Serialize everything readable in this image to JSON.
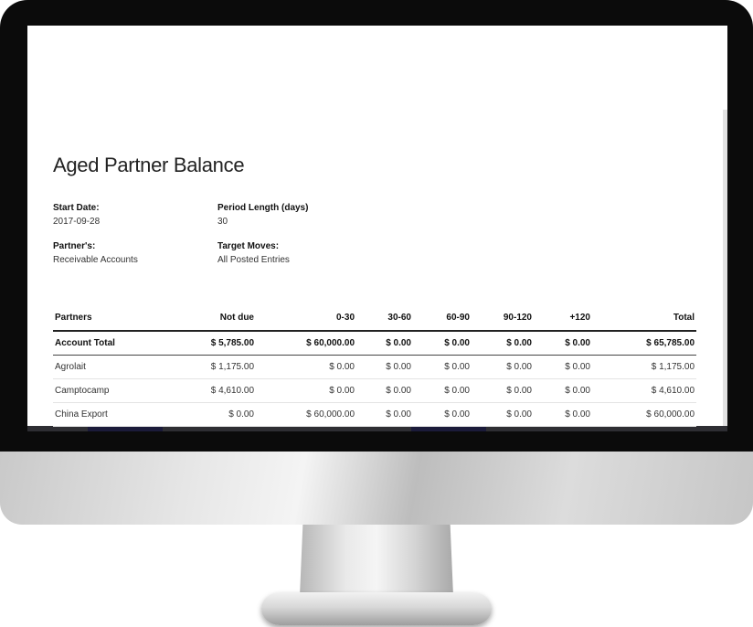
{
  "report": {
    "title": "Aged Partner Balance",
    "start_date": {
      "label": "Start Date:",
      "value": "2017-09-28"
    },
    "period_length": {
      "label": "Period Length (days)",
      "value": "30"
    },
    "partners": {
      "label": "Partner's:",
      "value": "Receivable Accounts"
    },
    "target_moves": {
      "label": "Target Moves:",
      "value": "All Posted Entries"
    }
  },
  "table": {
    "headers": [
      "Partners",
      "Not due",
      "0-30",
      "30-60",
      "60-90",
      "90-120",
      "+120",
      "Total"
    ],
    "total_row": [
      "Account Total",
      "$ 5,785.00",
      "$ 60,000.00",
      "$ 0.00",
      "$ 0.00",
      "$ 0.00",
      "$ 0.00",
      "$ 65,785.00"
    ],
    "rows": [
      [
        "Agrolait",
        "$ 1,175.00",
        "$ 0.00",
        "$ 0.00",
        "$ 0.00",
        "$ 0.00",
        "$ 0.00",
        "$ 1,175.00"
      ],
      [
        "Camptocamp",
        "$ 4,610.00",
        "$ 0.00",
        "$ 0.00",
        "$ 0.00",
        "$ 0.00",
        "$ 0.00",
        "$ 4,610.00"
      ],
      [
        "China Export",
        "$ 0.00",
        "$ 60,000.00",
        "$ 0.00",
        "$ 0.00",
        "$ 0.00",
        "$ 0.00",
        "$ 60,000.00"
      ]
    ]
  }
}
